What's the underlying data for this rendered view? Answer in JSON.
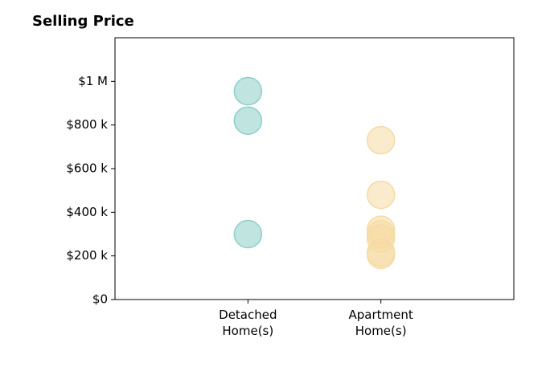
{
  "chart_data": {
    "type": "strip",
    "title": "Selling Price",
    "categories": [
      "Detached\nHome(s)",
      "Apartment\nHome(s)"
    ],
    "values": [
      [
        955000,
        820000,
        300000
      ],
      [
        730000,
        480000,
        320000,
        300000,
        280000,
        215000,
        205000
      ]
    ],
    "colors": [
      "#8ccfc8",
      "#f5dba3"
    ],
    "ylim": [
      0,
      1200000
    ],
    "yticks": [
      {
        "value": 0,
        "label": "$0"
      },
      {
        "value": 200000,
        "label": "$200 k"
      },
      {
        "value": 400000,
        "label": "$400 k"
      },
      {
        "value": 600000,
        "label": "$600 k"
      },
      {
        "value": 800000,
        "label": "$800 k"
      },
      {
        "value": 1000000,
        "label": "$1 M"
      }
    ]
  }
}
